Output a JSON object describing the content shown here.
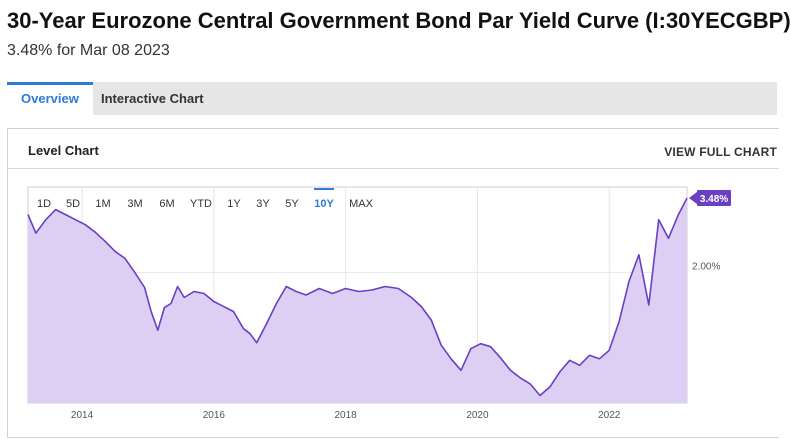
{
  "header": {
    "title": "30-Year Eurozone Central Government Bond Par Yield Curve (I:30YECGBP)",
    "subtitle": "3.48% for Mar 08 2023"
  },
  "tabs": [
    {
      "label": "Overview",
      "active": true
    },
    {
      "label": "Interactive Chart",
      "active": false
    }
  ],
  "card": {
    "title": "Level Chart",
    "link": "VIEW FULL CHART"
  },
  "range_buttons": [
    {
      "label": "1D",
      "active": false
    },
    {
      "label": "5D",
      "active": false
    },
    {
      "label": "1M",
      "active": false
    },
    {
      "label": "3M",
      "active": false
    },
    {
      "label": "6M",
      "active": false
    },
    {
      "label": "YTD",
      "active": false
    },
    {
      "label": "1Y",
      "active": false
    },
    {
      "label": "3Y",
      "active": false
    },
    {
      "label": "5Y",
      "active": false
    },
    {
      "label": "10Y",
      "active": true
    },
    {
      "label": "MAX",
      "active": false
    }
  ],
  "colors": {
    "accent": "#2d7bd6",
    "line": "#6a3fc4",
    "fill": "#dccff3",
    "badge": "#6a3fc4"
  },
  "chart_data": {
    "type": "area",
    "title": "",
    "xlabel": "",
    "ylabel": "",
    "x_ticks": [
      "2014",
      "2016",
      "2018",
      "2020",
      "2022"
    ],
    "y_ticks": [
      "2.00%"
    ],
    "ylim": [
      -0.6,
      3.7
    ],
    "grid": true,
    "last_value_label": "3.48%",
    "series": [
      {
        "x": [
          2013.18,
          2013.3,
          2013.45,
          2013.6,
          2013.75,
          2013.9,
          2014.05,
          2014.2,
          2014.35,
          2014.5,
          2014.65,
          2014.8,
          2014.95,
          2015.05,
          2015.15,
          2015.25,
          2015.35,
          2015.45,
          2015.55,
          2015.7,
          2015.85,
          2016.0,
          2016.15,
          2016.3,
          2016.45,
          2016.55,
          2016.65,
          2016.8,
          2016.95,
          2017.1,
          2017.25,
          2017.4,
          2017.6,
          2017.8,
          2018.0,
          2018.2,
          2018.4,
          2018.6,
          2018.8,
          2019.0,
          2019.15,
          2019.3,
          2019.45,
          2019.6,
          2019.75,
          2019.9,
          2020.05,
          2020.2,
          2020.35,
          2020.5,
          2020.65,
          2020.8,
          2020.95,
          2021.1,
          2021.25,
          2021.4,
          2021.55,
          2021.7,
          2021.85,
          2022.0,
          2022.15,
          2022.3,
          2022.45,
          2022.6,
          2022.75,
          2022.9,
          2023.05,
          2023.18
        ],
        "values": [
          3.15,
          2.78,
          3.05,
          3.25,
          3.15,
          3.05,
          2.95,
          2.8,
          2.62,
          2.42,
          2.28,
          2.0,
          1.7,
          1.22,
          0.85,
          1.3,
          1.38,
          1.72,
          1.5,
          1.62,
          1.58,
          1.42,
          1.32,
          1.22,
          0.88,
          0.78,
          0.6,
          0.98,
          1.38,
          1.72,
          1.62,
          1.55,
          1.68,
          1.58,
          1.68,
          1.62,
          1.65,
          1.72,
          1.68,
          1.5,
          1.32,
          1.05,
          0.55,
          0.28,
          0.05,
          0.48,
          0.58,
          0.52,
          0.3,
          0.05,
          -0.1,
          -0.22,
          -0.45,
          -0.28,
          0.02,
          0.25,
          0.15,
          0.35,
          0.28,
          0.45,
          1.02,
          1.82,
          2.35,
          1.35,
          3.05,
          2.68,
          3.15,
          3.48
        ]
      }
    ]
  }
}
